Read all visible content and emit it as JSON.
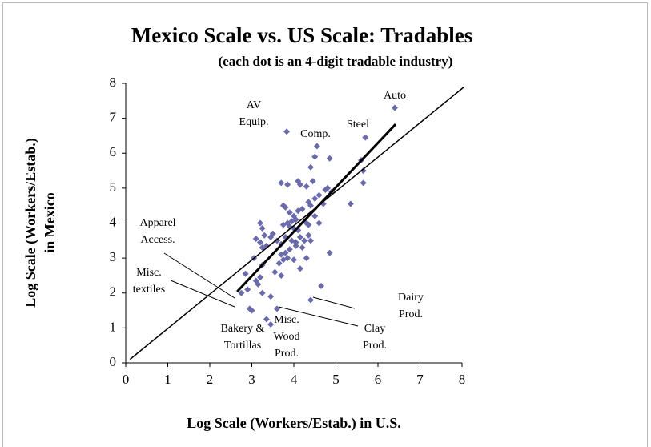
{
  "chart_data": {
    "type": "scatter",
    "title": "Mexico Scale vs. US Scale: Tradables",
    "subtitle": "(each dot is an 4-digit tradable industry)",
    "xlabel": "Log Scale (Workers/Estab.) in U.S.",
    "ylabel": [
      "Log Scale (Workers/Estab.)",
      "in Mexico"
    ],
    "xlim": [
      0,
      8
    ],
    "ylim": [
      0,
      8
    ],
    "xticks": [
      0,
      1,
      2,
      3,
      4,
      5,
      6,
      7,
      8
    ],
    "yticks": [
      0,
      1,
      2,
      3,
      4,
      5,
      6,
      7,
      8
    ],
    "color": "#6b6bab",
    "x": [
      6.4,
      3.83,
      5.7,
      4.55,
      4.5,
      4.85,
      5.6,
      5.65,
      5.65,
      4.4,
      3.7,
      3.85,
      4.1,
      4.15,
      4.3,
      4.45,
      4.8,
      4.9,
      4.75,
      4.6,
      4.7,
      4.5,
      4.4,
      4.35,
      4.2,
      4.1,
      3.75,
      3.8,
      3.9,
      4.0,
      4.05,
      3.95,
      3.85,
      3.75,
      3.9,
      4.0,
      4.1,
      4.3,
      4.35,
      4.6,
      4.5,
      5.35,
      3.2,
      3.25,
      3.3,
      3.5,
      3.45,
      3.6,
      3.7,
      3.8,
      3.95,
      4.05,
      4.15,
      4.25,
      4.35,
      4.4,
      4.2,
      4.05,
      3.9,
      3.8,
      3.7,
      3.75,
      3.65,
      3.85,
      4.0,
      4.15,
      4.3,
      4.85,
      3.1,
      3.2,
      3.25,
      3.35,
      3.05,
      3.25,
      3.55,
      3.7,
      3.2,
      3.1,
      3.15,
      2.9,
      2.85,
      3.25,
      3.45,
      3.6,
      2.95,
      3.0,
      3.35,
      3.45,
      4.4,
      4.65,
      2.75
    ],
    "y": [
      7.3,
      6.62,
      6.45,
      6.2,
      5.9,
      5.85,
      5.8,
      5.5,
      5.15,
      5.6,
      5.15,
      5.1,
      5.2,
      5.1,
      5.05,
      5.2,
      5.0,
      4.9,
      4.95,
      4.8,
      4.55,
      4.7,
      4.5,
      4.6,
      4.4,
      4.35,
      4.5,
      4.45,
      4.3,
      4.2,
      4.1,
      4.05,
      4.0,
      3.95,
      3.9,
      3.85,
      3.8,
      4.0,
      3.95,
      4.0,
      4.2,
      4.55,
      4.0,
      3.85,
      3.65,
      3.7,
      3.6,
      3.5,
      3.4,
      3.6,
      3.5,
      3.45,
      3.6,
      3.5,
      3.65,
      3.5,
      3.3,
      3.35,
      3.25,
      3.15,
      3.1,
      2.95,
      2.85,
      3.0,
      2.95,
      2.7,
      3.0,
      3.15,
      3.55,
      3.45,
      3.3,
      3.35,
      3.0,
      2.8,
      2.6,
      2.5,
      2.45,
      2.35,
      2.25,
      2.1,
      2.55,
      2.0,
      1.9,
      1.55,
      1.55,
      1.5,
      1.25,
      1.1,
      1.8,
      2.2,
      2.0
    ],
    "lines": [
      {
        "x": [
          0.1,
          8.05
        ],
        "y": [
          0.1,
          7.9
        ],
        "width": 1.5
      },
      {
        "x": [
          2.65,
          6.42
        ],
        "y": [
          2.04,
          6.83
        ],
        "width": 3
      }
    ],
    "annotations": [
      [
        "Auto"
      ],
      [
        "AV",
        "Equip."
      ],
      [
        "Comp."
      ],
      [
        "Steel"
      ],
      [
        "Apparel",
        "Access."
      ],
      [
        "Misc.",
        "textiles"
      ],
      [
        "Dairy",
        "Prod."
      ],
      [
        "Clay",
        "Prod."
      ],
      [
        "Misc.",
        "Wood",
        "Prod."
      ],
      [
        "Bakery &",
        "Tortillas"
      ]
    ]
  }
}
